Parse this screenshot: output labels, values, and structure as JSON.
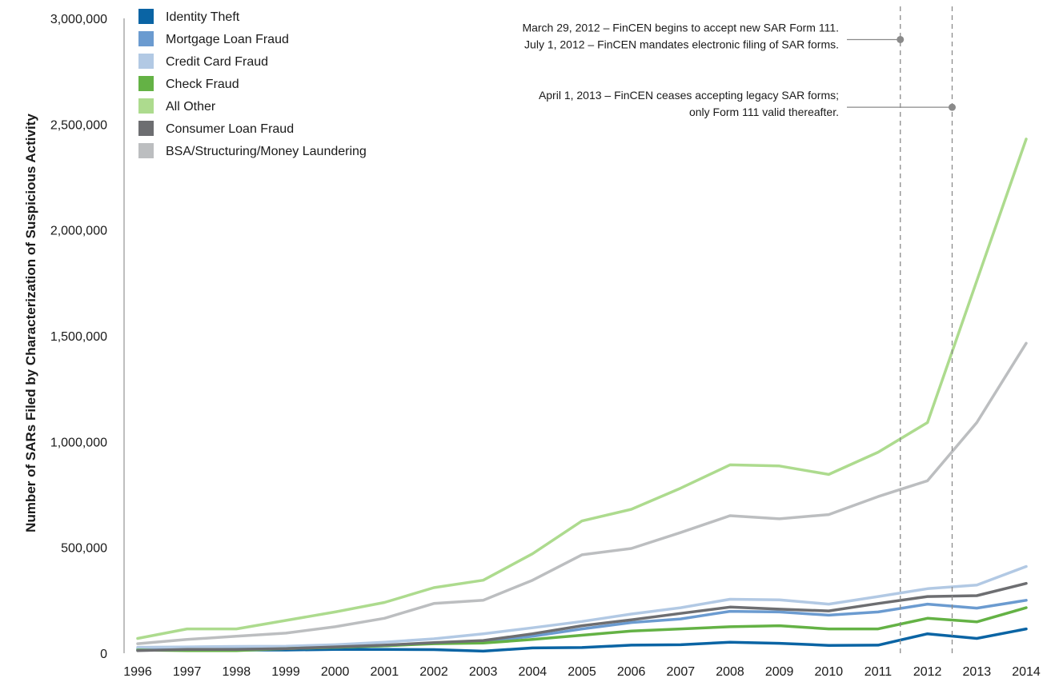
{
  "chart_data": {
    "type": "line",
    "title": "",
    "xlabel": "",
    "ylabel": "Number of SARs Filed by Characterization of Suspicious Activity",
    "x": [
      "1996",
      "1997",
      "1998",
      "1999",
      "2000",
      "2001",
      "2002",
      "2003",
      "2004",
      "2005",
      "2006",
      "2007",
      "2008",
      "2009",
      "2010",
      "2011",
      "2012",
      "2013",
      "2014"
    ],
    "ylim": [
      0,
      3000000
    ],
    "yticks": [
      0,
      500000,
      1000000,
      1500000,
      2000000,
      2500000,
      3000000
    ],
    "ytick_labels": [
      "0",
      "500,000",
      "1,000,000",
      "1,500,000",
      "2,000,000",
      "2,500,000",
      "3,000,000"
    ],
    "grid": false,
    "legend_position": "top-left",
    "series": [
      {
        "name": "Identity Theft",
        "color": "#0a64a4",
        "values": [
          15000,
          15000,
          15000,
          15000,
          18000,
          18000,
          17000,
          10000,
          25000,
          27000,
          38000,
          40000,
          52000,
          47000,
          37000,
          38000,
          92000,
          70000,
          115000
        ]
      },
      {
        "name": "Mortgage Loan Fraud",
        "color": "#6b9bd0",
        "values": [
          20000,
          22000,
          20000,
          22000,
          28000,
          35000,
          48000,
          55000,
          80000,
          115000,
          145000,
          162000,
          198000,
          195000,
          180000,
          195000,
          232000,
          213000,
          250000
        ]
      },
      {
        "name": "Credit Card Fraud",
        "color": "#b2c9e4",
        "values": [
          28000,
          30000,
          32000,
          33000,
          40000,
          52000,
          68000,
          92000,
          120000,
          150000,
          185000,
          215000,
          255000,
          252000,
          232000,
          268000,
          305000,
          322000,
          410000
        ]
      },
      {
        "name": "Check Fraud",
        "color": "#64b245",
        "values": [
          15000,
          12000,
          12000,
          22000,
          28000,
          35000,
          45000,
          48000,
          65000,
          85000,
          105000,
          115000,
          125000,
          130000,
          115000,
          115000,
          165000,
          148000,
          215000
        ]
      },
      {
        "name": "All Other",
        "color": "#addb8e",
        "values": [
          70000,
          115000,
          115000,
          155000,
          195000,
          240000,
          310000,
          345000,
          470000,
          625000,
          680000,
          780000,
          890000,
          885000,
          845000,
          950000,
          1090000,
          1760000,
          2430000
        ]
      },
      {
        "name": "Consumer Loan Fraud",
        "color": "#6d6e71",
        "values": [
          12000,
          18000,
          18000,
          22000,
          30000,
          38000,
          50000,
          60000,
          92000,
          130000,
          158000,
          188000,
          218000,
          208000,
          200000,
          235000,
          268000,
          272000,
          330000
        ]
      },
      {
        "name": "BSA/Structuring/Money Laundering",
        "color": "#bcbec0",
        "values": [
          45000,
          65000,
          80000,
          95000,
          125000,
          165000,
          235000,
          250000,
          345000,
          465000,
          495000,
          570000,
          650000,
          635000,
          655000,
          740000,
          815000,
          1090000,
          1465000
        ]
      }
    ],
    "annotations": [
      {
        "year_position": 2011.45,
        "lines": [
          "March 29, 2012 – FinCEN begins to accept new SAR Form 111.",
          "July 1, 2012 – FinCEN mandates electronic filing of SAR forms."
        ],
        "marker_y": 2900000
      },
      {
        "year_position": 2012.5,
        "lines": [
          "April 1, 2013 – FinCEN ceases accepting legacy SAR forms;",
          "only Form 111 valid thereafter."
        ],
        "marker_y": 2580000
      }
    ]
  }
}
